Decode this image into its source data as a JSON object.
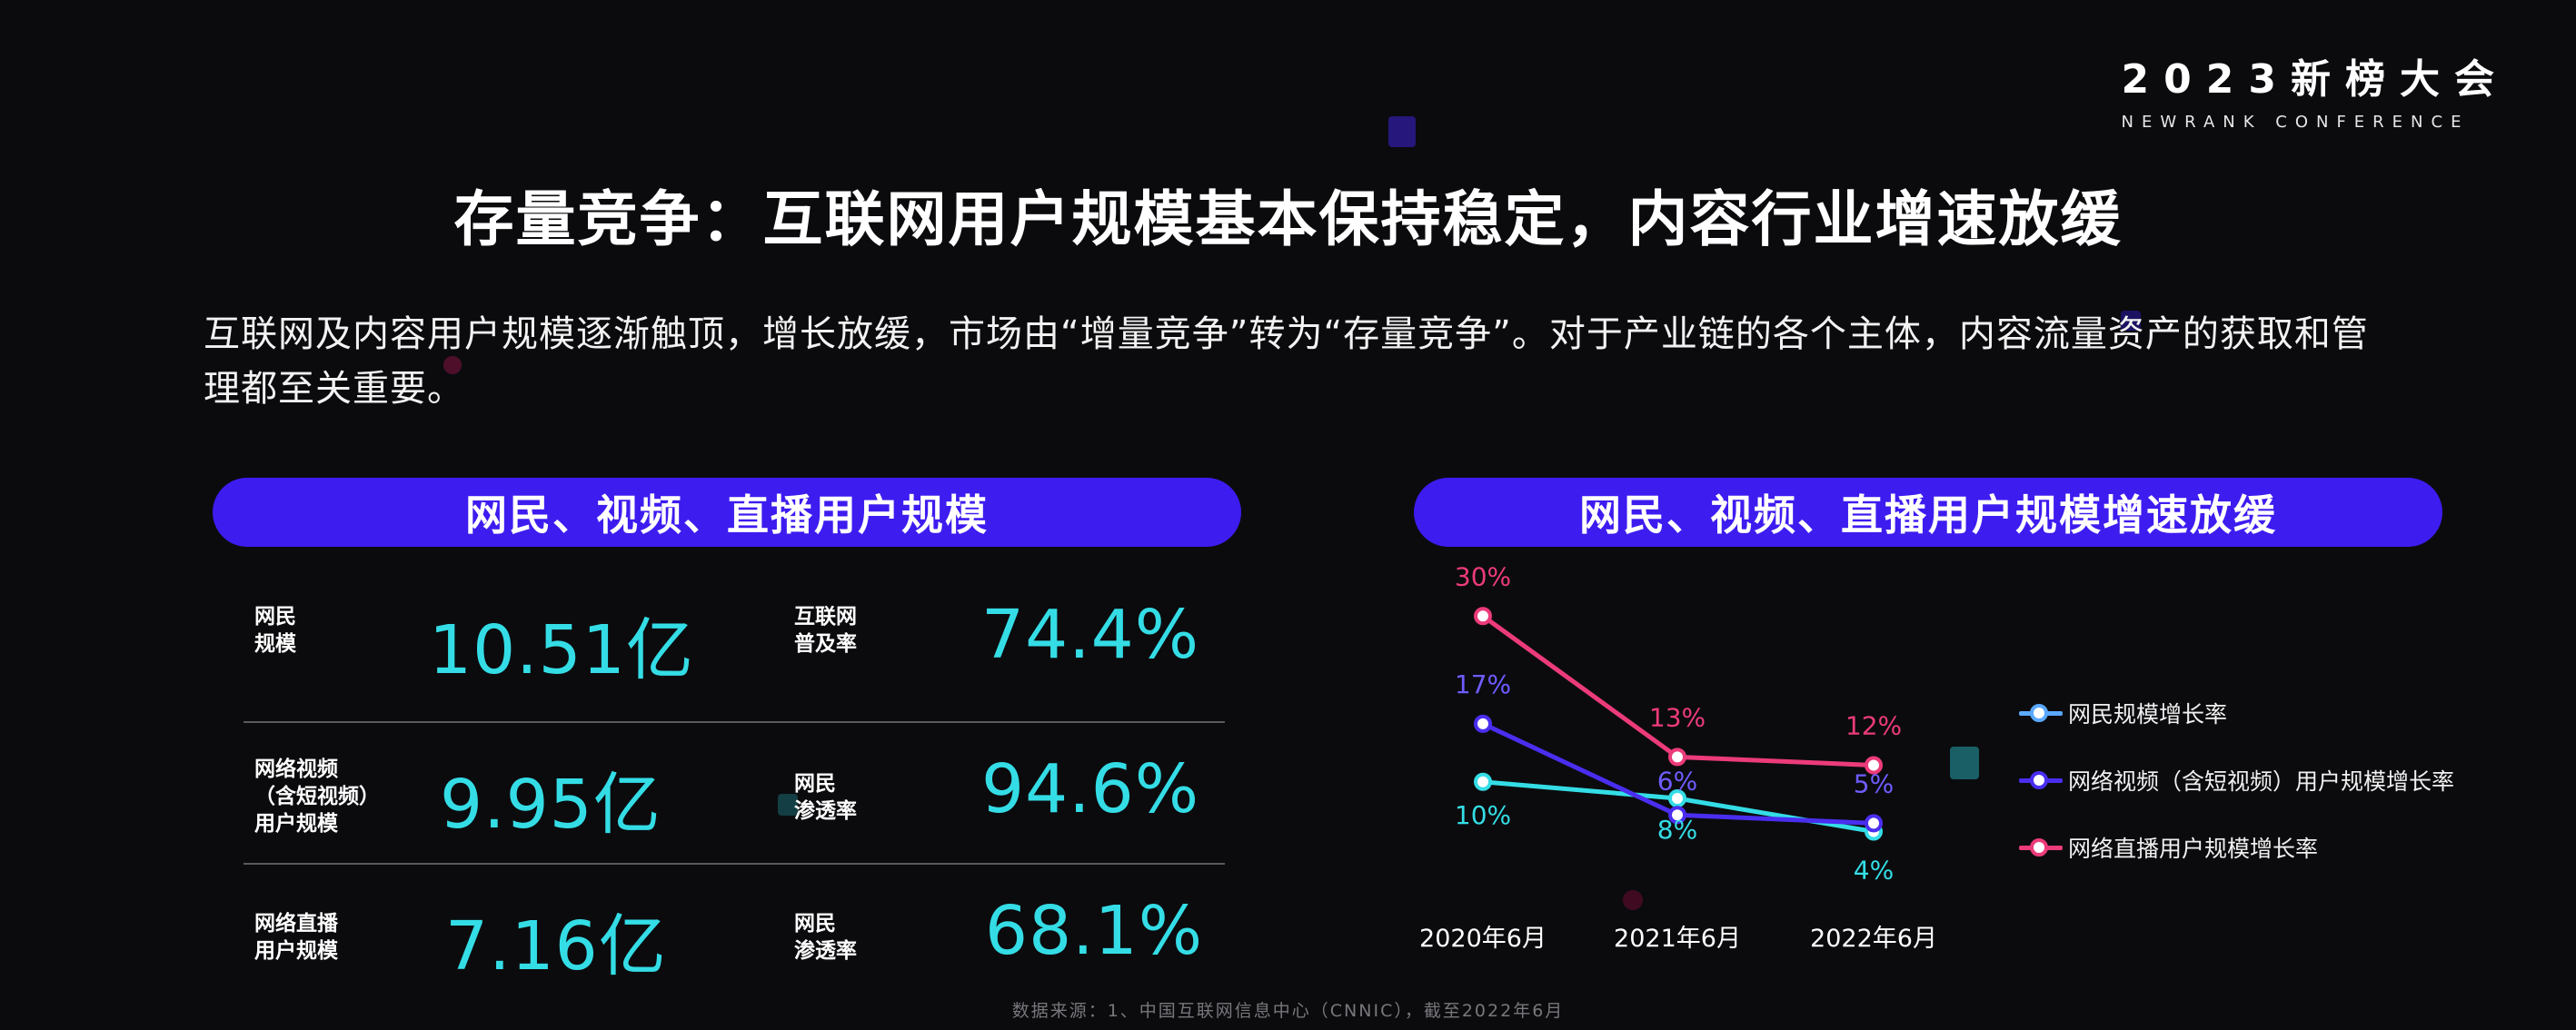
{
  "logo": {
    "main": "2023新榜大会",
    "sub": "NEWRANK CONFERENCE"
  },
  "title": "存量竞争：互联网用户规模基本保持稳定，内容行业增速放缓",
  "intro": "互联网及内容用户规模逐渐触顶，增长放缓，市场由“增量竞争”转为“存量竞争”。对于产业链的各个主体，内容流量资产的获取和管理都至关重要。",
  "left_panel": {
    "header": "网民、视频、直播用户规模",
    "rows": [
      {
        "label1": [
          "网民",
          "规模"
        ],
        "value1": "10.51亿",
        "label2": [
          "互联网",
          "普及率"
        ],
        "value2": "74.4%"
      },
      {
        "label1": [
          "网络视频",
          "（含短视频）",
          "用户规模"
        ],
        "value1": "9.95亿",
        "label2": [
          "网民",
          "渗透率"
        ],
        "value2": "94.6%"
      },
      {
        "label1": [
          "网络直播",
          "用户规模"
        ],
        "value1": "7.16亿",
        "label2": [
          "网民",
          "渗透率"
        ],
        "value2": "68.1%"
      }
    ]
  },
  "right_panel": {
    "header": "网民、视频、直播用户规模增速放缓"
  },
  "chart_data": {
    "type": "line",
    "categories": [
      "2020年6月",
      "2021年6月",
      "2022年6月"
    ],
    "ylim": [
      0,
      32
    ],
    "series": [
      {
        "name": "网民规模增长率",
        "values": [
          10,
          8,
          4
        ],
        "labels": [
          "10%",
          "8%",
          "4%"
        ],
        "color": "#34dde6"
      },
      {
        "name": "网络视频（含短视频）用户规模增长率",
        "values": [
          17,
          6,
          5
        ],
        "labels": [
          "17%",
          "6%",
          "5%"
        ],
        "color": "#4a2ef0"
      },
      {
        "name": "网络直播用户规模增长率",
        "values": [
          30,
          13,
          12
        ],
        "labels": [
          "30%",
          "13%",
          "12%"
        ],
        "color": "#ec3b7a"
      }
    ]
  },
  "colors": {
    "accent": "#3d1cf0",
    "cyan": "#34dde6",
    "pink": "#ec3b7a",
    "purple": "#4a2ef0"
  },
  "source": "数据来源：1、中国互联网信息中心（CNNIC），截至2022年6月"
}
